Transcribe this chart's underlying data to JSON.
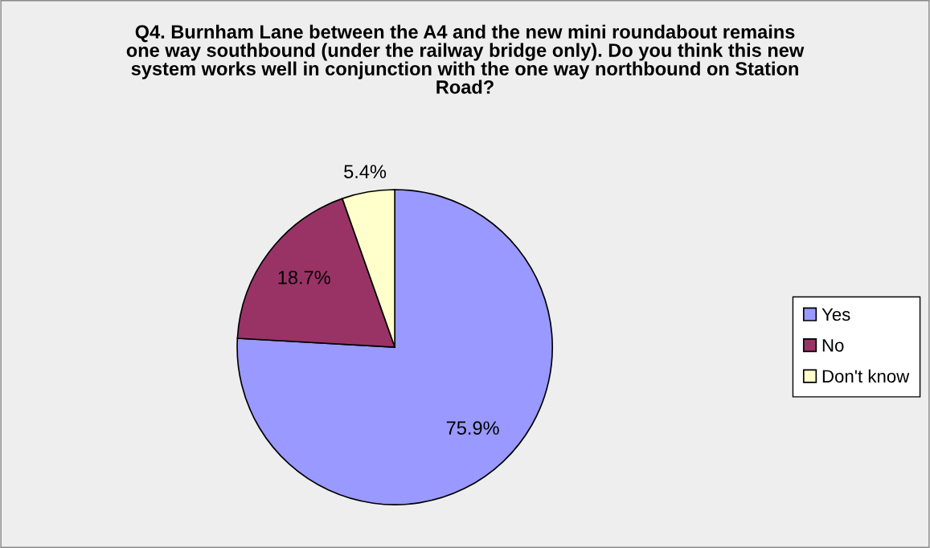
{
  "chart_data": {
    "type": "pie",
    "title": "Q4. Burnham Lane between the A4 and the new mini roundabout remains\none way southbound (under the railway bridge only). Do you think this new\nsystem works well in conjunction with the one way northbound on Station\nRoad?",
    "categories": [
      "Yes",
      "No",
      "Don't know"
    ],
    "values": [
      75.9,
      18.7,
      5.4
    ],
    "colors": [
      "#9999ff",
      "#993366",
      "#ffffcc"
    ],
    "value_labels": [
      "75.9%",
      "18.7%",
      "5.4%"
    ],
    "legend": "right"
  }
}
